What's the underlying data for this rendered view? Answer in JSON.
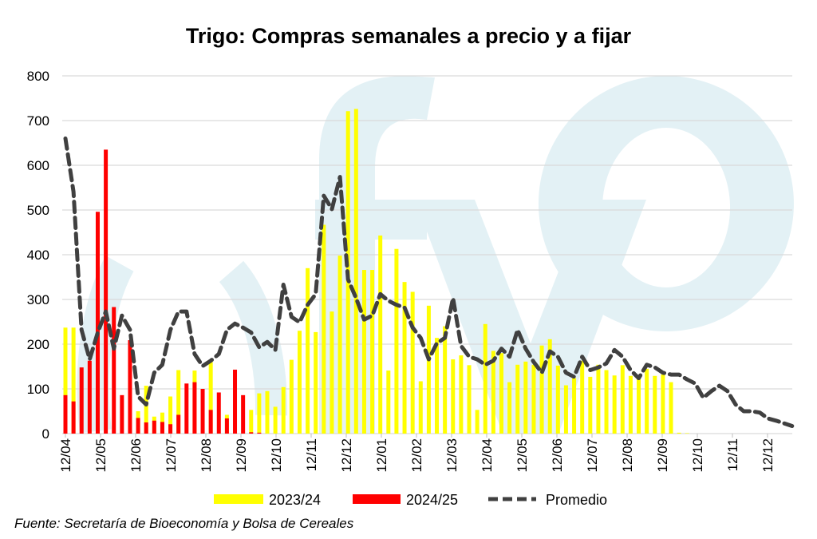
{
  "chart_data": {
    "type": "bar",
    "title": "Trigo: Compras semanales a precio y a fijar",
    "xlabel": "",
    "ylabel": "",
    "ylim": [
      0,
      800
    ],
    "yticks": [
      "0",
      "100",
      "200",
      "300",
      "400",
      "500",
      "600",
      "700",
      "800"
    ],
    "grid": true,
    "legend_position": "bottom",
    "xtick_labels": [
      "12/04",
      "12/05",
      "12/06",
      "12/07",
      "12/08",
      "12/09",
      "12/10",
      "12/11",
      "12/12",
      "12/01",
      "12/02",
      "12/03",
      "12/04",
      "12/05",
      "12/06",
      "12/07",
      "12/08",
      "12/09",
      "12/10",
      "12/11",
      "12/12"
    ],
    "x_unit": "weeks",
    "series": [
      {
        "name": "2023/24",
        "type": "bar",
        "color": "#ffff00",
        "values": [
          237,
          237,
          0,
          0,
          0,
          0,
          0,
          0,
          0,
          50,
          107,
          38,
          47,
          83,
          142,
          0,
          141,
          0,
          160,
          0,
          42,
          0,
          0,
          53,
          90,
          95,
          60,
          104,
          165,
          230,
          370,
          227,
          467,
          273,
          398,
          721,
          726,
          366,
          366,
          443,
          141,
          413,
          339,
          317,
          117,
          286,
          214,
          240,
          166,
          175,
          153,
          53,
          245,
          185,
          180,
          115,
          154,
          161,
          154,
          197,
          211,
          152,
          108,
          124,
          163,
          127,
          154,
          142,
          130,
          153,
          129,
          124,
          145,
          129,
          132,
          115,
          2,
          1
        ]
      },
      {
        "name": "2024/25",
        "type": "bar",
        "color": "#ff0000",
        "values": [
          86,
          72,
          148,
          163,
          496,
          635,
          283,
          86,
          209,
          35,
          25,
          29,
          26,
          21,
          42,
          112,
          115,
          100,
          53,
          92,
          34,
          143,
          86,
          3,
          2
        ]
      },
      {
        "name": "Promedio",
        "type": "line",
        "color": "#404040",
        "style": "dashed",
        "values": [
          660,
          541,
          232,
          166,
          226,
          273,
          190,
          264,
          232,
          83,
          65,
          136,
          154,
          232,
          273,
          273,
          178,
          151,
          163,
          178,
          232,
          246,
          237,
          226,
          193,
          205,
          187,
          333,
          261,
          249,
          288,
          312,
          532,
          502,
          574,
          345,
          303,
          255,
          264,
          312,
          297,
          288,
          282,
          237,
          214,
          166,
          202,
          214,
          303,
          196,
          172,
          166,
          154,
          163,
          190,
          172,
          232,
          190,
          160,
          136,
          184,
          172,
          136,
          127,
          172,
          142,
          148,
          157,
          187,
          172,
          142,
          124,
          154,
          148,
          136,
          132,
          132,
          121,
          112,
          80,
          95,
          107,
          95,
          65,
          50,
          50,
          47,
          34,
          29,
          23,
          17
        ]
      }
    ]
  },
  "legend": {
    "s1": "2023/24",
    "s2": "2024/25",
    "s3": "Promedio"
  },
  "source": "Fuente: Secretaría de Bioeconomía y Bolsa de Cereales",
  "watermark": "cfvo"
}
